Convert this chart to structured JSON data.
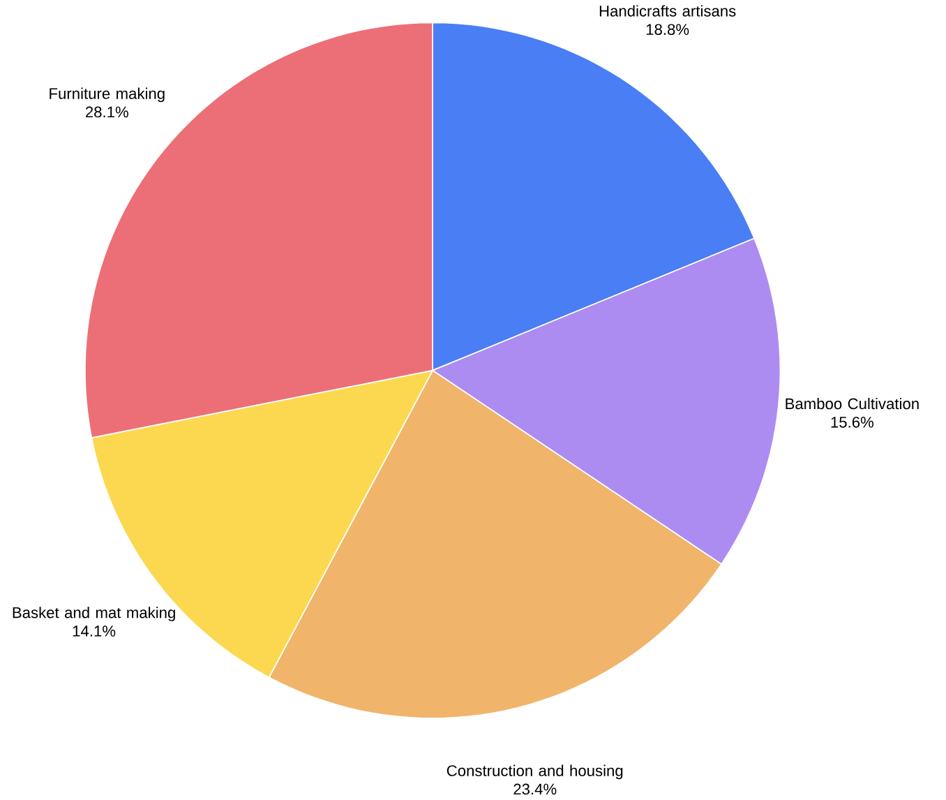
{
  "chart_data": {
    "type": "pie",
    "categories": [
      "Handicrafts artisans",
      "Bamboo Cultivation",
      "Construction and housing",
      "Basket and mat making",
      "Furniture making"
    ],
    "values": [
      18.8,
      15.6,
      23.4,
      14.1,
      28.1
    ],
    "value_labels": [
      "18.8%",
      "15.6%",
      "23.4%",
      "14.1%",
      "28.1%"
    ],
    "colors": [
      "#4a7ef5",
      "#ad8cf2",
      "#f0b46a",
      "#fbd84f",
      "#ec6f77"
    ]
  }
}
